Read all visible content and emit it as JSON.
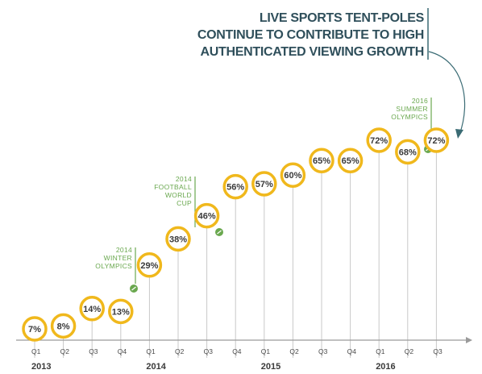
{
  "callout": {
    "lines": [
      "LIVE SPORTS TENT-POLES",
      "CONTINUE TO CONTRIBUTE TO HIGH",
      "AUTHENTICATED VIEWING GROWTH"
    ]
  },
  "colors": {
    "ring": "#f0b81c",
    "stem": "#c9c9c9",
    "event": "#6aa84f",
    "axis": "#9a9a9a",
    "callout_text": "#2f4f5b",
    "callout_arrow": "#3a6b74"
  },
  "chart_data": {
    "type": "scatter",
    "categories": [
      "Q1",
      "Q2",
      "Q3",
      "Q4",
      "Q1",
      "Q2",
      "Q3",
      "Q4",
      "Q1",
      "Q2",
      "Q3",
      "Q4",
      "Q1",
      "Q2",
      "Q3"
    ],
    "years": [
      {
        "label": "2013",
        "start_index": 0
      },
      {
        "label": "2014",
        "start_index": 4
      },
      {
        "label": "2015",
        "start_index": 8
      },
      {
        "label": "2016",
        "start_index": 12
      }
    ],
    "series": [
      {
        "values": [
          7,
          8,
          14,
          13,
          29,
          38,
          46,
          56,
          57,
          60,
          65,
          65,
          72,
          68,
          72
        ]
      }
    ],
    "value_labels": [
      "7%",
      "8%",
      "14%",
      "13%",
      "29%",
      "38%",
      "46%",
      "56%",
      "57%",
      "60%",
      "65%",
      "65%",
      "72%",
      "68%",
      "72%"
    ],
    "ylim": [
      0,
      80
    ],
    "events": [
      {
        "lines": [
          "2014",
          "WINTER",
          "OLYMPICS"
        ],
        "index": 3
      },
      {
        "lines": [
          "2014",
          "FOOTBALL",
          "WORLD",
          "CUP"
        ],
        "index": 6
      },
      {
        "lines": [
          "2016",
          "SUMMER",
          "OLYMPICS"
        ],
        "index": 14
      }
    ]
  }
}
